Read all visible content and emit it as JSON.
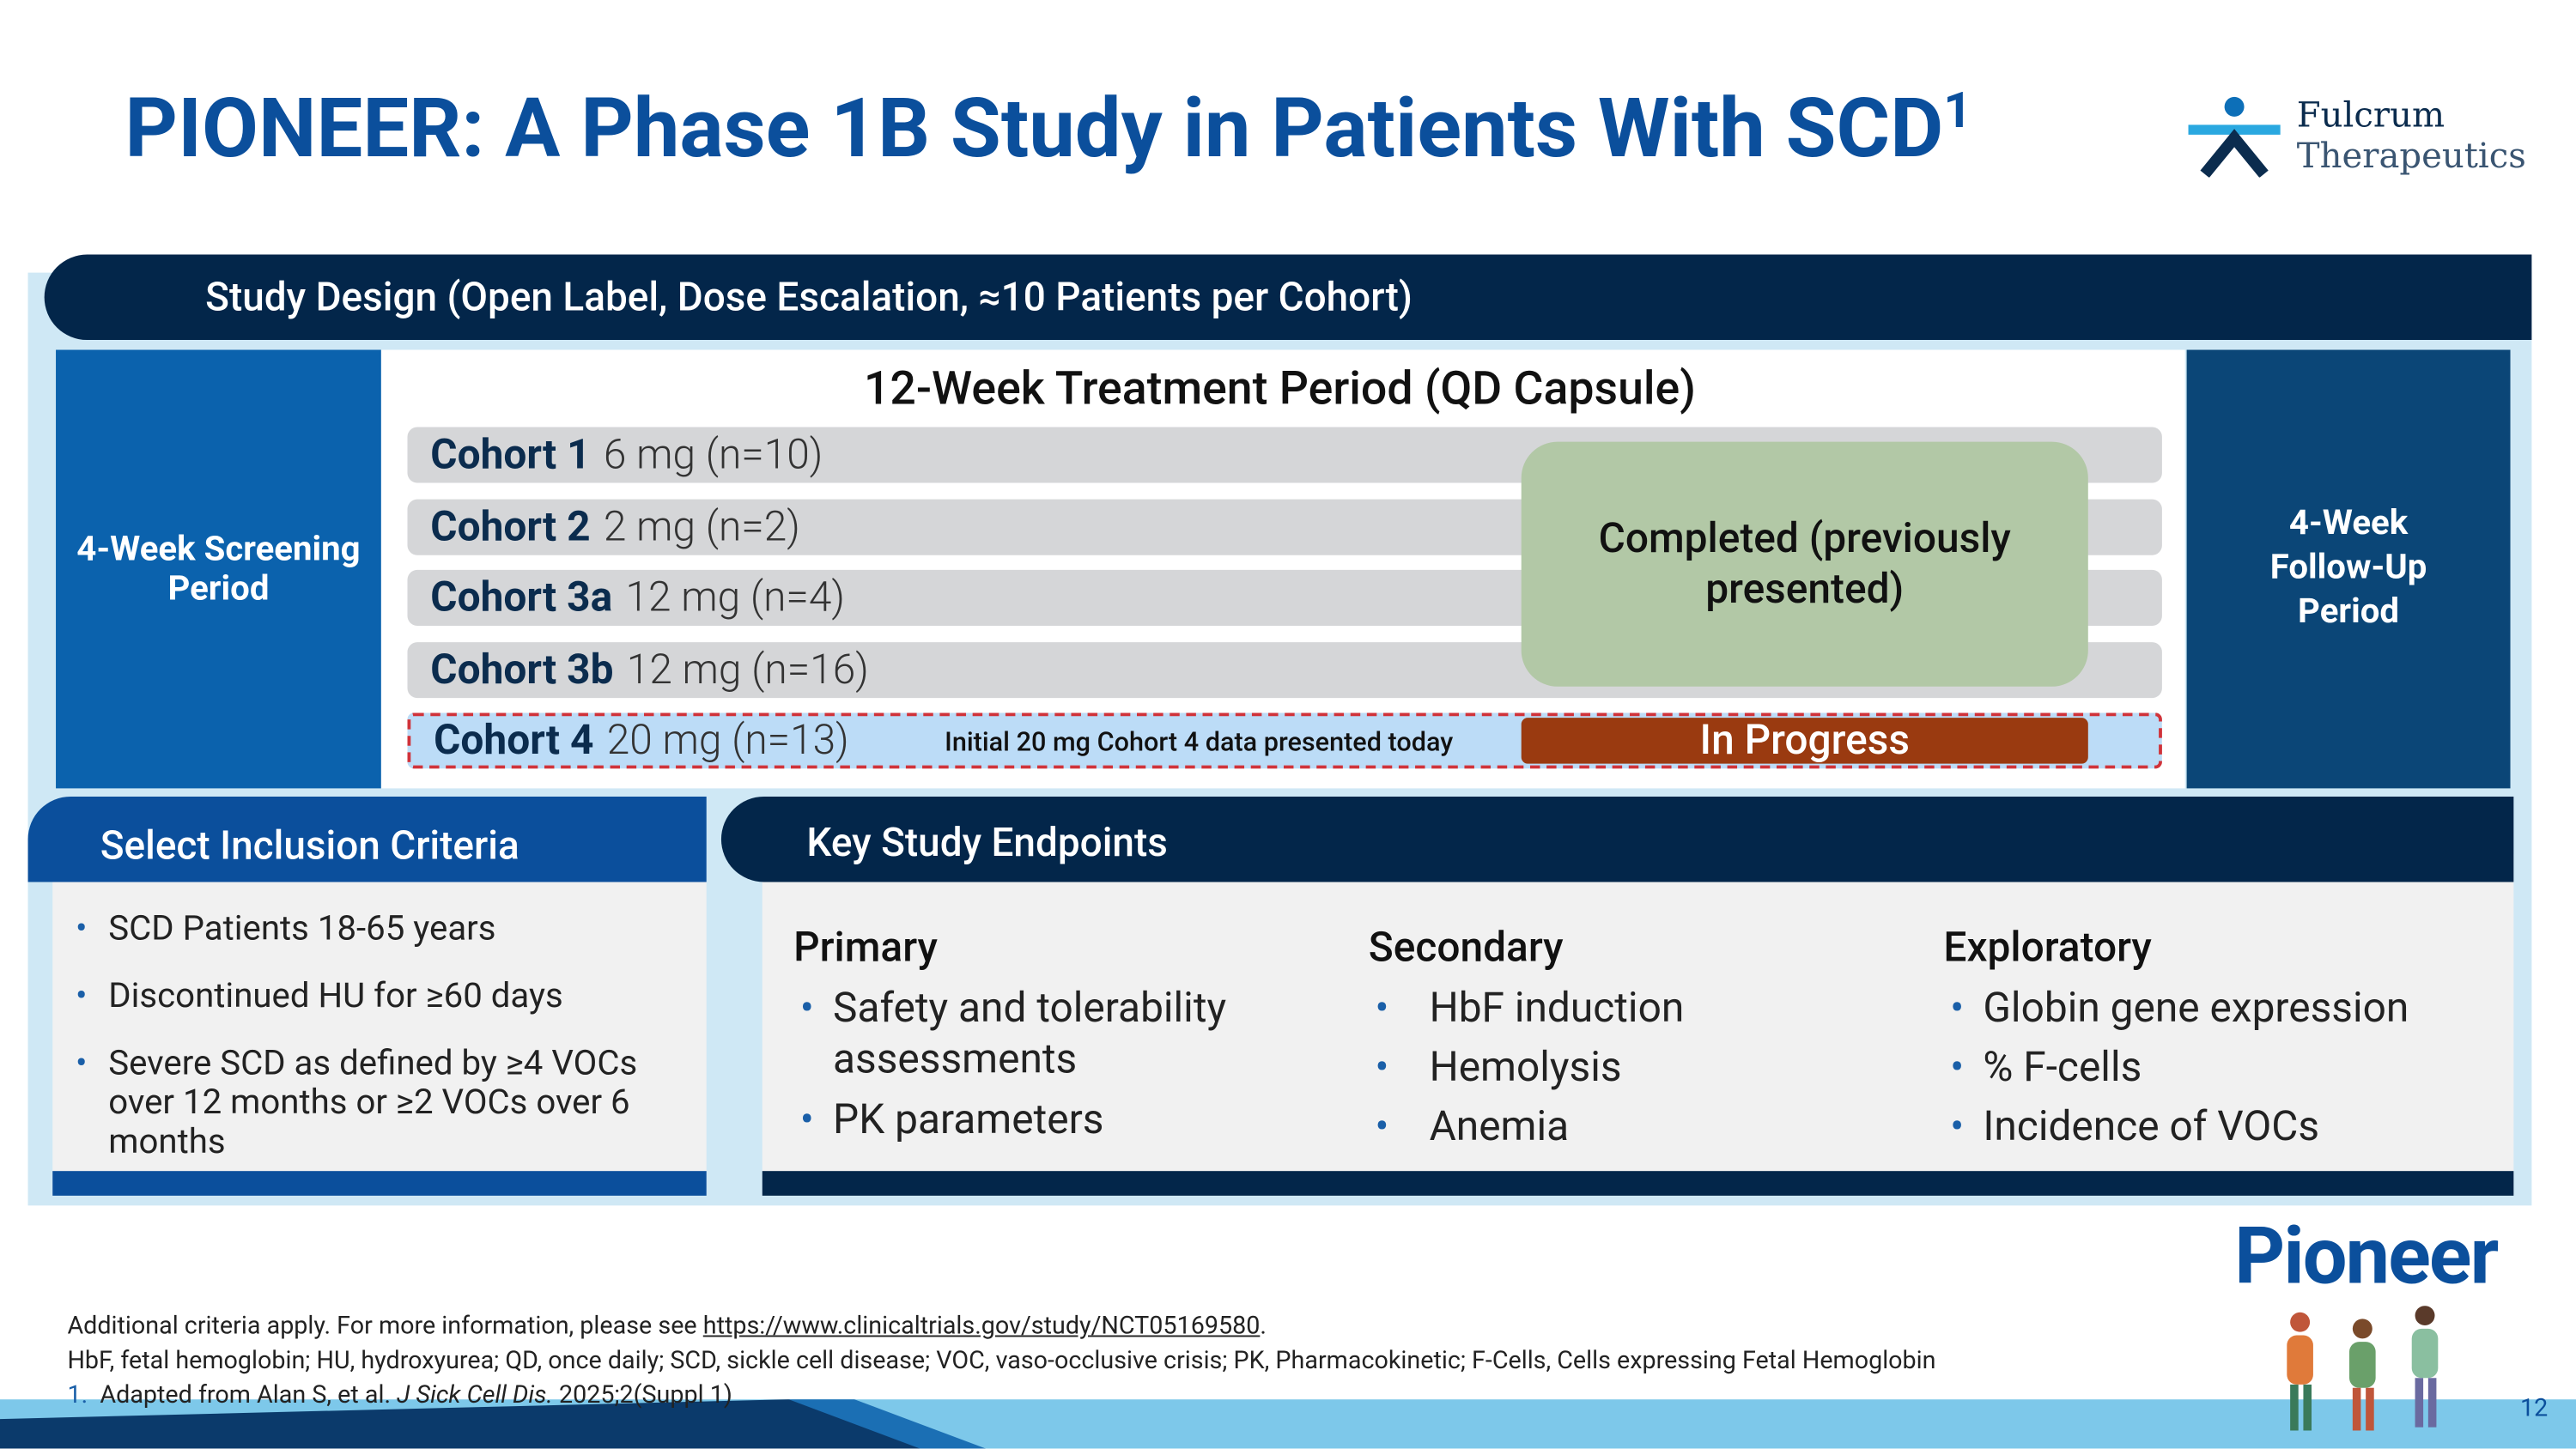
{
  "header": {
    "title": "PIONEER: A Phase 1B Study in Patients With SCD",
    "title_sup": "1",
    "logo_line1": "Fulcrum",
    "logo_line2": "Therapeutics"
  },
  "design": {
    "heading": "Study Design (Open Label, Dose Escalation, ≈10 Patients per Cohort)",
    "screening": "4-Week Screening Period",
    "treatment_title": "12-Week Treatment Period (QD Capsule)",
    "cohorts": [
      {
        "name": "Cohort 1",
        "dose": "6 mg (n=10)"
      },
      {
        "name": "Cohort 2",
        "dose": "2 mg (n=2)"
      },
      {
        "name": "Cohort 3a",
        "dose": "12 mg (n=4)"
      },
      {
        "name": "Cohort 3b",
        "dose": "12 mg (n=16)"
      },
      {
        "name": "Cohort 4",
        "dose": "20 mg (n=13)"
      }
    ],
    "completed": "Completed (previously presented)",
    "cohort4_note": "Initial 20 mg Cohort 4 data presented today",
    "in_progress": "In Progress",
    "follow_up": "4-Week Follow-Up Period"
  },
  "inclusion": {
    "heading": "Select Inclusion Criteria",
    "items": [
      "SCD Patients 18-65 years",
      "Discontinued HU for ≥60 days",
      "Severe SCD as defined by ≥4 VOCs over 12 months or ≥2 VOCs over 6 months"
    ]
  },
  "endpoints": {
    "heading": "Key Study Endpoints",
    "columns": [
      {
        "title": "Primary",
        "items": [
          "Safety and tolerability assessments",
          "PK parameters"
        ]
      },
      {
        "title": "Secondary",
        "items": [
          "HbF induction",
          "Hemolysis",
          "Anemia"
        ]
      },
      {
        "title": "Exploratory",
        "items": [
          "Globin gene expression",
          "% F-cells",
          "Incidence of VOCs"
        ]
      }
    ]
  },
  "footer": {
    "line1": "Additional criteria apply. For more information, please see ",
    "link": "https://www.clinicaltrials.gov/study/NCT05169580",
    "line1_end": ".",
    "line2": "HbF, fetal hemoglobin; HU, hydroxyurea; QD, once daily; SCD, sickle cell disease; VOC, vaso-occlusive crisis; PK, Pharmacokinetic; F-Cells, Cells expressing Fetal Hemoglobin",
    "ref_num": "1.",
    "ref_text": "Adapted from Alan S, et al.",
    "ref_journal": "J Sick Cell Dis.",
    "ref_end": "2025;2(Suppl 1)",
    "pioneer_logo": "Pioneer",
    "page_number": "12"
  }
}
